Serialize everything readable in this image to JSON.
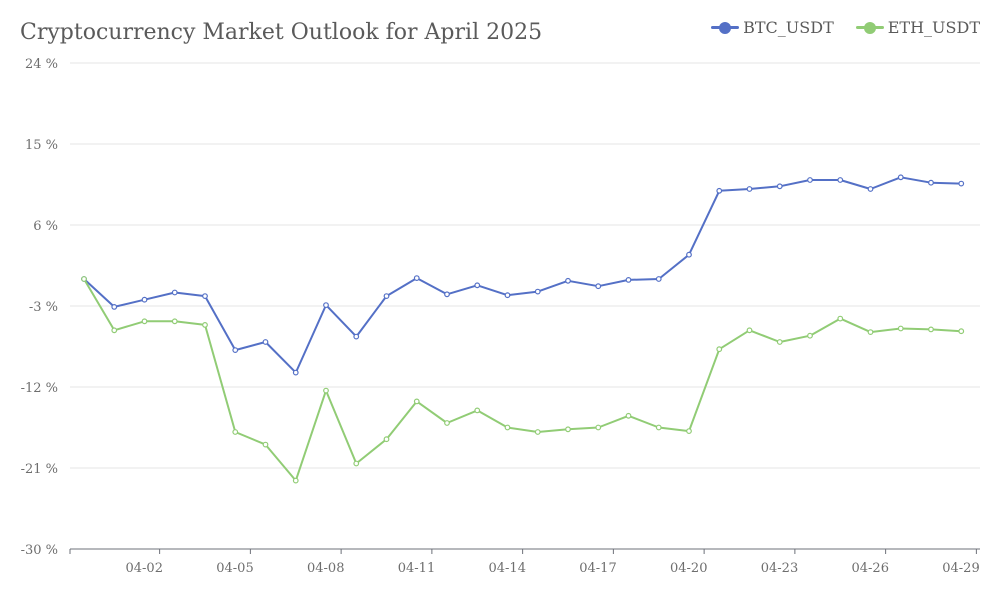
{
  "chart_data": {
    "type": "line",
    "title": "Cryptocurrency Market Outlook for April 2025",
    "xlabel": "",
    "ylabel": "",
    "ylim": [
      -30,
      24
    ],
    "y_ticks": [
      24,
      15,
      6,
      -3,
      -12,
      -21,
      -30
    ],
    "y_tick_labels": [
      "24 %",
      "15 %",
      "6 %",
      "-3 %",
      "-12 %",
      "-21 %",
      "-30 %"
    ],
    "x": [
      "04-01",
      "04-02",
      "04-03",
      "04-04",
      "04-05",
      "04-06",
      "04-07",
      "04-08",
      "04-09",
      "04-10",
      "04-11",
      "04-12",
      "04-13",
      "04-14",
      "04-15",
      "04-16",
      "04-17",
      "04-18",
      "04-19",
      "04-20",
      "04-21",
      "04-22",
      "04-23",
      "04-24",
      "04-25",
      "04-26",
      "04-27",
      "04-28",
      "04-29",
      "04-30"
    ],
    "x_tick_labels": [
      "04-02",
      "04-05",
      "04-08",
      "04-11",
      "04-14",
      "04-17",
      "04-20",
      "04-23",
      "04-26",
      "04-29"
    ],
    "grid": "horizontal",
    "legend_position": "top-right",
    "series": [
      {
        "name": "BTC_USDT",
        "color": "#5470c6",
        "values": [
          0,
          -3.1,
          -2.3,
          -1.5,
          -1.9,
          -7.9,
          -7.0,
          -10.4,
          -2.9,
          -6.4,
          -1.9,
          0.1,
          -1.7,
          -0.7,
          -1.8,
          -1.4,
          -0.2,
          -0.8,
          -0.1,
          0,
          2.7,
          9.8,
          10.0,
          10.3,
          11.0,
          11.0,
          10.0,
          11.3,
          10.7,
          10.6
        ]
      },
      {
        "name": "ETH_USDT",
        "color": "#91cc75",
        "values": [
          0,
          -5.7,
          -4.7,
          -4.7,
          -5.1,
          -17.0,
          -18.4,
          -22.4,
          -12.4,
          -20.5,
          -17.8,
          -13.6,
          -16.0,
          -14.6,
          -16.5,
          -17.0,
          -16.7,
          -16.5,
          -15.2,
          -16.5,
          -16.9,
          -7.8,
          -5.7,
          -7.0,
          -6.3,
          -4.4,
          -5.9,
          -5.5,
          -5.6,
          -5.8
        ]
      }
    ]
  }
}
